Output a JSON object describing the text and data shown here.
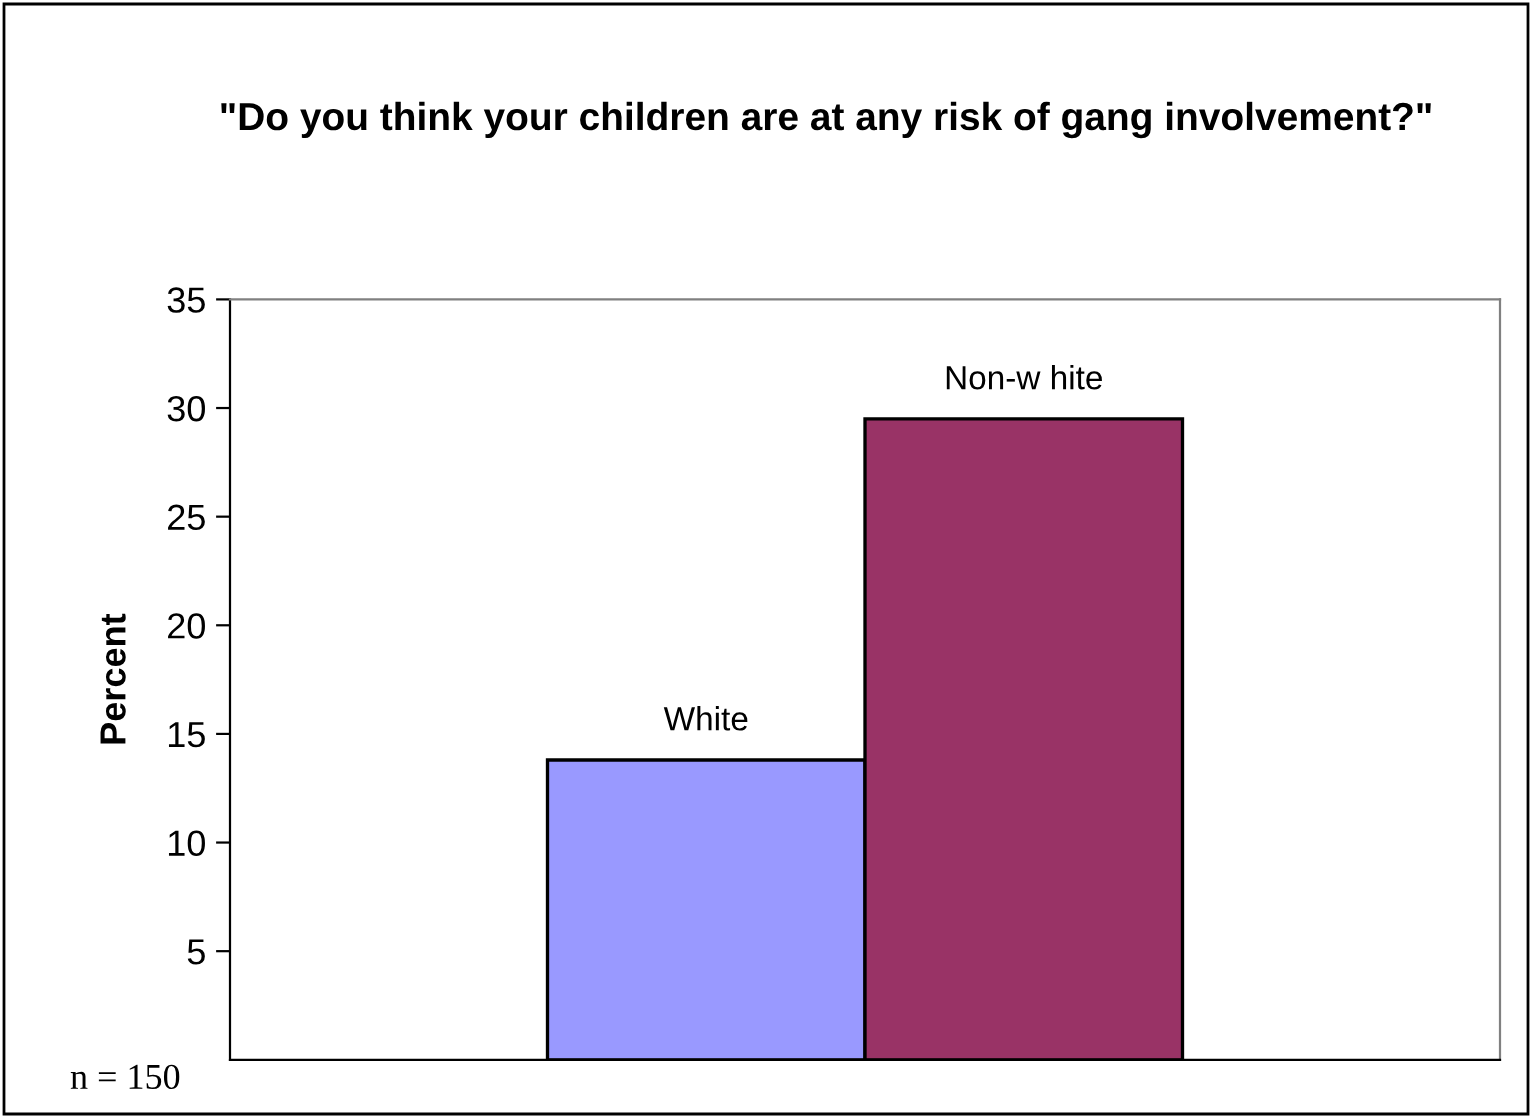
{
  "chart_data": {
    "type": "bar",
    "title": "\"Do you think your children are at any risk of gang involvement?\"",
    "ylabel": "Percent",
    "categories": [
      null
    ],
    "series": [
      {
        "name": "White",
        "color": "#9999ff",
        "values": [
          13.8
        ]
      },
      {
        "name": "Non-w hite",
        "color": "#993366",
        "values": [
          29.5
        ]
      }
    ],
    "ylim": [
      0,
      35
    ],
    "yticks": [
      5,
      10,
      15,
      20,
      25,
      30,
      35
    ],
    "grid": false,
    "legend": false,
    "annotations": [
      "n = 150"
    ]
  }
}
